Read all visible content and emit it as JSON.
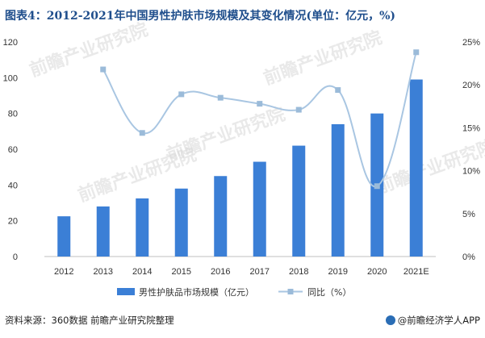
{
  "title": "图表4：2012-2021年中国男性护肤市场规模及其变化情况(单位：亿元，%)",
  "footer": {
    "source": "资料来源：360数据 前瞻产业研究院整理",
    "brand": "@前瞻经济学人APP"
  },
  "watermark": "前瞻产业研究院",
  "colors": {
    "bar": "#3b7fd6",
    "line": "#a9c6e2",
    "marker": "#9bbbd9",
    "title": "#1f4e8c"
  },
  "chart_data": {
    "type": "bar",
    "categories": [
      "2012",
      "2013",
      "2014",
      "2015",
      "2016",
      "2017",
      "2018",
      "2019",
      "2020",
      "2021E"
    ],
    "series": [
      {
        "name": "男性护肤品市场规模（亿元）",
        "type": "bar",
        "axis": "left",
        "values": [
          22.5,
          28,
          32.5,
          38,
          45,
          53,
          62,
          74,
          80,
          99
        ]
      },
      {
        "name": "同比（%）",
        "type": "line",
        "axis": "right",
        "values": [
          null,
          21.8,
          14.4,
          18.9,
          18.5,
          17.8,
          17.1,
          19.4,
          8.2,
          23.8
        ]
      }
    ],
    "ylim_left": [
      0,
      120
    ],
    "yticks_left": [
      "0",
      "20",
      "40",
      "60",
      "80",
      "100",
      "120"
    ],
    "ylim_right": [
      0,
      25
    ],
    "yticks_right": [
      "0%",
      "5%",
      "10%",
      "15%",
      "20%",
      "25%"
    ],
    "legend": "bottom-center",
    "grid": false
  }
}
